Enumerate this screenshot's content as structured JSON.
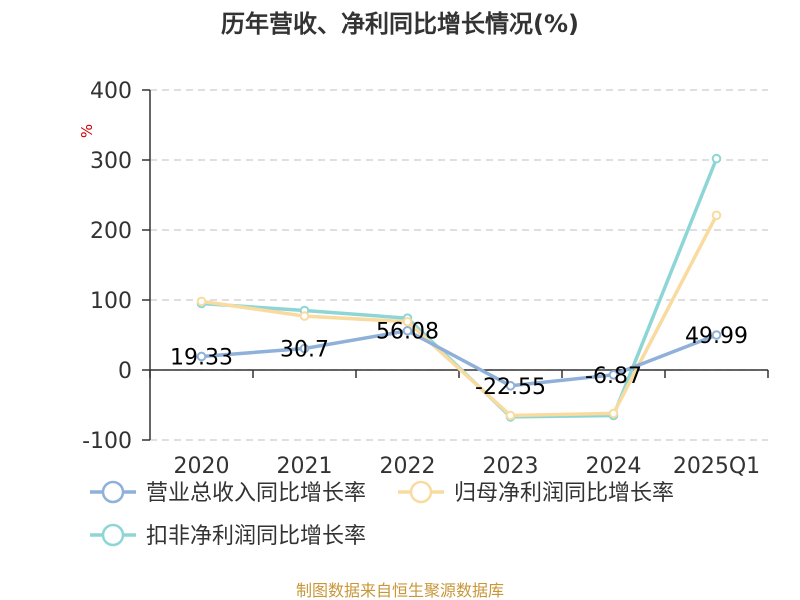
{
  "chart_data": {
    "type": "line",
    "title": "历年营收、净利同比增长情况(%)",
    "ylabel": "%",
    "categories": [
      "2020",
      "2021",
      "2022",
      "2023",
      "2024",
      "2025Q1"
    ],
    "ylim": [
      -100,
      400
    ],
    "yticks": [
      -100,
      0,
      100,
      200,
      300,
      400
    ],
    "grid": true,
    "legend_position": "bottom",
    "series": [
      {
        "name": "营业总收入同比增长率",
        "color": "#8fb0d8",
        "values": [
          19.33,
          30.7,
          56.08,
          -22.55,
          -6.87,
          49.99
        ],
        "labels": [
          "19.33",
          "30.7",
          "56.08",
          "-22.55",
          "-6.87",
          "49.99"
        ]
      },
      {
        "name": "归母净利润同比增长率",
        "color": "#f9dba0",
        "values": [
          98,
          77,
          69,
          -65,
          -62,
          221
        ]
      },
      {
        "name": "扣非净利润同比增长率",
        "color": "#8ed6d6",
        "values": [
          95,
          85,
          74,
          -67,
          -65,
          302
        ]
      }
    ],
    "source": "制图数据来自恒生聚源数据库"
  }
}
